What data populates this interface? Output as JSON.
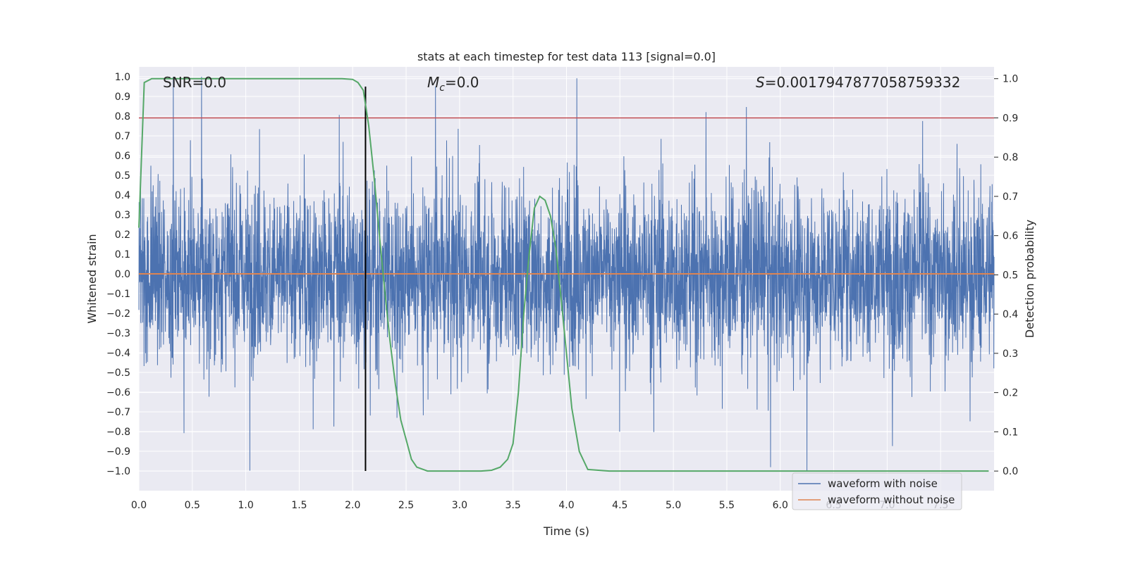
{
  "chart_data": {
    "type": "line",
    "title": "stats at each timestep for test data 113 [signal=0.0]",
    "xlabel": "Time (s)",
    "ylabel": "Whitened strain",
    "y2label": "Detection probability",
    "xlim": [
      0.0,
      8.0
    ],
    "ylim": [
      -1.1,
      1.05
    ],
    "y2lim": [
      -0.05,
      1.03
    ],
    "x_ticks": [
      0.0,
      0.5,
      1.0,
      1.5,
      2.0,
      2.5,
      3.0,
      3.5,
      4.0,
      4.5,
      5.0,
      5.5,
      6.0,
      6.5,
      7.0,
      7.5
    ],
    "x_tick_labels": [
      "0.0",
      "0.5",
      "1.0",
      "1.5",
      "2.0",
      "2.5",
      "3.0",
      "3.5",
      "4.0",
      "4.5",
      "5.0",
      "5.5",
      "6.0",
      "6.5",
      "7.0",
      "7.5"
    ],
    "y_ticks": [
      1.0,
      0.9,
      0.8,
      0.7,
      0.6,
      0.5,
      0.4,
      0.3,
      0.2,
      0.1,
      0.0,
      -0.1,
      -0.2,
      -0.3,
      -0.4,
      -0.5,
      -0.6,
      -0.7,
      -0.8,
      -0.9,
      -1.0
    ],
    "y_tick_labels": [
      "1.0",
      "0.9",
      "0.8",
      "0.7",
      "0.6",
      "0.5",
      "0.4",
      "0.3",
      "0.2",
      "0.1",
      "0.0",
      "−0.1",
      "−0.2",
      "−0.3",
      "−0.4",
      "−0.5",
      "−0.6",
      "−0.7",
      "−0.8",
      "−0.9",
      "−1.0"
    ],
    "y2_ticks": [
      1.0,
      0.9,
      0.8,
      0.7,
      0.6,
      0.5,
      0.4,
      0.3,
      0.2,
      0.1,
      0.0
    ],
    "y2_tick_labels": [
      "1.0",
      "0.9",
      "0.8",
      "0.7",
      "0.6",
      "0.5",
      "0.4",
      "0.3",
      "0.2",
      "0.1",
      "0.0"
    ],
    "annotations": {
      "snr": "SNR=0.0",
      "mc_symbol": "M",
      "mc_sub": "c",
      "mc_value": "=0.0",
      "s_symbol": "S",
      "s_value": "=0.0017947877058759332"
    },
    "series": [
      {
        "name": "waveform with noise",
        "color": "#4c72b0",
        "axis": "left",
        "kind": "noise",
        "x_range": [
          0.0,
          8.0
        ],
        "amplitude_range": [
          -1.0,
          1.0
        ]
      },
      {
        "name": "waveform without noise",
        "color": "#dd8452",
        "axis": "left",
        "x": [
          0.0,
          8.0
        ],
        "y": [
          0.0,
          0.0
        ]
      },
      {
        "name": "detection probability",
        "color": "#55a868",
        "axis": "right",
        "x": [
          0.0,
          0.05,
          0.12,
          0.25,
          0.5,
          1.0,
          1.5,
          1.9,
          2.0,
          2.05,
          2.1,
          2.15,
          2.2,
          2.25,
          2.3,
          2.35,
          2.4,
          2.45,
          2.5,
          2.55,
          2.6,
          2.7,
          2.9,
          3.2,
          3.3,
          3.38,
          3.45,
          3.5,
          3.55,
          3.6,
          3.65,
          3.7,
          3.75,
          3.8,
          3.85,
          3.9,
          3.95,
          4.0,
          4.05,
          4.12,
          4.2,
          4.4,
          5.0,
          6.0,
          7.0,
          7.95
        ],
        "y": [
          0.62,
          0.99,
          1.0,
          1.0,
          1.0,
          1.0,
          1.0,
          1.0,
          0.998,
          0.99,
          0.97,
          0.88,
          0.75,
          0.6,
          0.46,
          0.33,
          0.22,
          0.13,
          0.08,
          0.03,
          0.01,
          0.0,
          0.0,
          0.0,
          0.002,
          0.01,
          0.03,
          0.07,
          0.2,
          0.4,
          0.55,
          0.67,
          0.7,
          0.69,
          0.65,
          0.57,
          0.44,
          0.3,
          0.16,
          0.05,
          0.004,
          0.0,
          0.0,
          0.0,
          0.0,
          0.0
        ]
      },
      {
        "name": "threshold",
        "color": "#c44e52",
        "axis": "right",
        "x": [
          0.0,
          8.0
        ],
        "y": [
          0.9,
          0.9
        ]
      },
      {
        "name": "marker",
        "color": "#000000",
        "axis": "left",
        "kind": "vline",
        "x": 2.12,
        "y_range": [
          -1.0,
          0.95
        ]
      }
    ],
    "legend": {
      "placement": "bottom-right",
      "entries": [
        {
          "label": "waveform with noise",
          "color": "#4c72b0"
        },
        {
          "label": "waveform without noise",
          "color": "#dd8452"
        }
      ]
    },
    "grid": true,
    "style": {
      "background": "#eaeaf2",
      "grid_color": "#ffffff"
    }
  }
}
